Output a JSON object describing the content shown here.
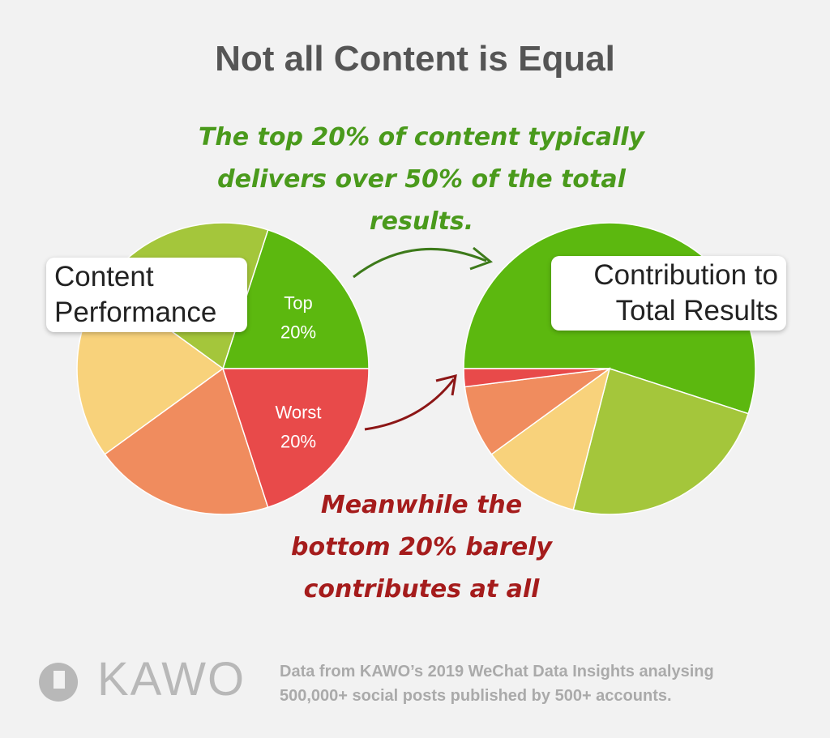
{
  "title": "Not all Content is Equal",
  "annotations": [
    "The top 20% of content typically delivers over 50% of the total results.",
    "Meanwhile the bottom 20% barely contributes at all"
  ],
  "footer": {
    "logo": "KAWO",
    "note": "Data from KAWO’s 2019 WeChat Data Insights analysing 500,000+ social posts published by 500+ accounts."
  },
  "chart_data": [
    {
      "type": "pie",
      "title": "Content Performance",
      "categories": [
        "Top 20%",
        null,
        null,
        null,
        "Worst 20%"
      ],
      "values": [
        20,
        20,
        20,
        20,
        20
      ],
      "colors": [
        "#5cb80f",
        "#a4c63b",
        "#f8d27b",
        "#f08c5e",
        "#e84a4a"
      ]
    },
    {
      "type": "pie",
      "title": "Contribution to Total Results",
      "values": [
        55,
        24,
        11,
        8,
        2
      ],
      "colors": [
        "#5cb80f",
        "#a4c63b",
        "#f8d27b",
        "#f08c5e",
        "#e84a4a"
      ]
    }
  ]
}
